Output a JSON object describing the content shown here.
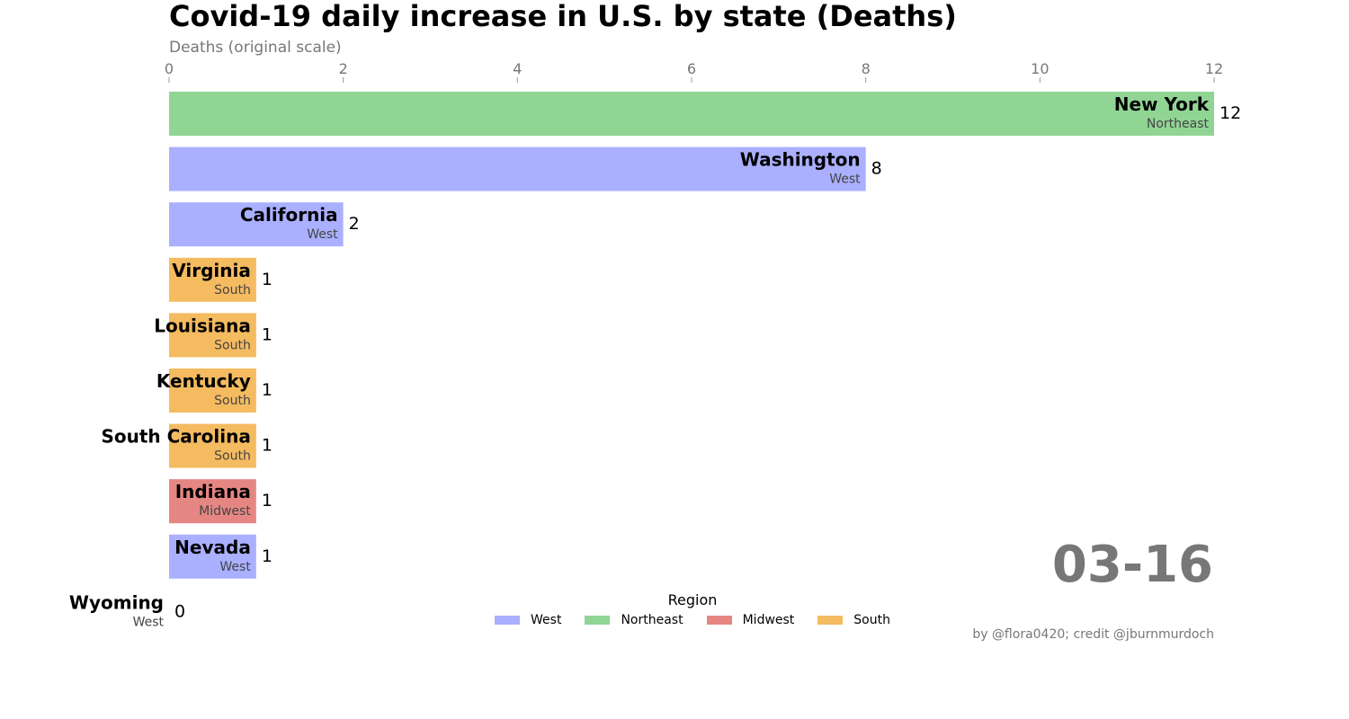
{
  "title": "Covid-19 daily increase in U.S. by state (Deaths)",
  "subtitle": "Deaths (original scale)",
  "date": "03-16",
  "credit": "by @flora0420; credit @jburnmurdoch",
  "legend": {
    "title": "Region",
    "items": [
      {
        "label": "West",
        "color": "#aab0ff"
      },
      {
        "label": "Northeast",
        "color": "#91d595"
      },
      {
        "label": "Midwest",
        "color": "#e68683"
      },
      {
        "label": "South",
        "color": "#f5bb60"
      }
    ]
  },
  "chart_data": {
    "type": "bar",
    "orientation": "horizontal",
    "title": "Covid-19 daily increase in U.S. by state (Deaths)",
    "xlabel": "Deaths (original scale)",
    "xlim": [
      0,
      12
    ],
    "xticks": [
      0,
      2,
      4,
      6,
      8,
      10,
      12
    ],
    "grid": false,
    "legend_position": "bottom-center",
    "bars": [
      {
        "state": "New York",
        "region": "Northeast",
        "value": 12
      },
      {
        "state": "Washington",
        "region": "West",
        "value": 8
      },
      {
        "state": "California",
        "region": "West",
        "value": 2
      },
      {
        "state": "Virginia",
        "region": "South",
        "value": 1
      },
      {
        "state": "Louisiana",
        "region": "South",
        "value": 1
      },
      {
        "state": "Kentucky",
        "region": "South",
        "value": 1
      },
      {
        "state": "South Carolina",
        "region": "South",
        "value": 1
      },
      {
        "state": "Indiana",
        "region": "Midwest",
        "value": 1
      },
      {
        "state": "Nevada",
        "region": "West",
        "value": 1
      },
      {
        "state": "Wyoming",
        "region": "West",
        "value": 0
      }
    ]
  }
}
